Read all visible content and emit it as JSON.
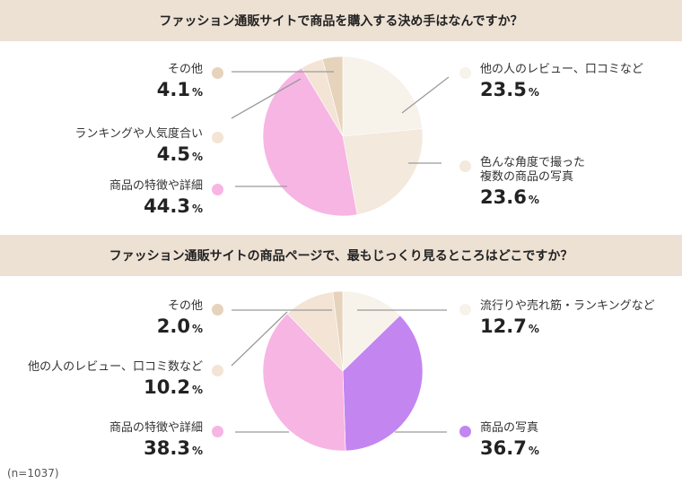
{
  "note": "(n=1037)",
  "chart_data": [
    {
      "type": "pie",
      "title": "ファッション通販サイトで商品を購入する決め手はなんですか？",
      "unit": "%",
      "slices": [
        {
          "label": "他の人のレビュー、口コミなど",
          "value": 23.5,
          "color": "#f7f2ea"
        },
        {
          "label": "色んな角度で撮った複数の商品の写真",
          "value": 23.6,
          "color": "#f3e9dc"
        },
        {
          "label": "商品の特徴や詳細",
          "value": 44.3,
          "color": "#f7b5e3"
        },
        {
          "label": "ランキングや人気度合い",
          "value": 4.5,
          "color": "#f3e4d6"
        },
        {
          "label": "その他",
          "value": 4.1,
          "color": "#e6d3bc"
        }
      ],
      "label_lines": [
        [
          "他の人のレビュー、口コミなど"
        ],
        [
          "色んな角度で撮った",
          "複数の商品の写真"
        ],
        [
          "商品の特徴や詳細"
        ],
        [
          "ランキングや人気度合い"
        ],
        [
          "その他"
        ]
      ],
      "value_labels": [
        "23.5",
        "23.6",
        "44.3",
        "4.5",
        "4.1"
      ]
    },
    {
      "type": "pie",
      "title": "ファッション通販サイトの商品ページで、最もじっくり見るところはどこですか？",
      "unit": "%",
      "slices": [
        {
          "label": "流行りや売れ筋・ランキングなど",
          "value": 12.7,
          "color": "#f7f2ea"
        },
        {
          "label": "商品の写真",
          "value": 36.7,
          "color": "#c386f0"
        },
        {
          "label": "商品の特徴や詳細",
          "value": 38.3,
          "color": "#f7b5e3"
        },
        {
          "label": "他の人のレビュー、口コミ数など",
          "value": 10.2,
          "color": "#f3e4d6"
        },
        {
          "label": "その他",
          "value": 2.0,
          "color": "#e6d3bc"
        }
      ],
      "label_lines": [
        [
          "流行りや売れ筋・ランキングなど"
        ],
        [
          "商品の写真"
        ],
        [
          "商品の特徴や詳細"
        ],
        [
          "他の人のレビュー、口コミ数など"
        ],
        [
          "その他"
        ]
      ],
      "value_labels": [
        "12.7",
        "36.7",
        "38.3",
        "10.2",
        "2.0"
      ]
    }
  ]
}
